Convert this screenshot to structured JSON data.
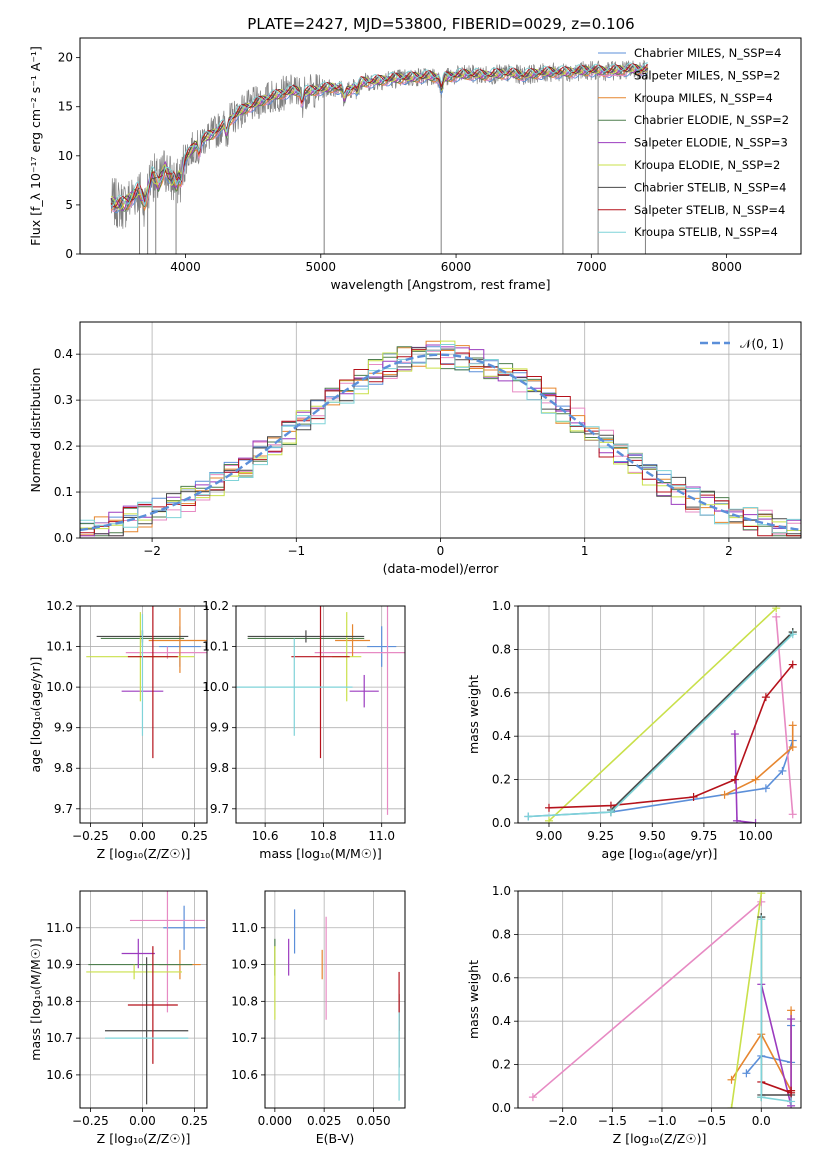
{
  "figure": {
    "title": "PLATE=2427, MJD=53800, FIBERID=0029, z=0.106"
  },
  "colors": {
    "Chabrier MILES": "#5b8fd9",
    "Salpeter MILES": "#e78ac3",
    "Kroupa MILES": "#e6862f",
    "Chabrier ELODIE": "#4f7f4f",
    "Salpeter ELODIE": "#9b3bbf",
    "Kroupa ELODIE": "#c9e04a",
    "Chabrier STELIB": "#4a4a4a",
    "Salpeter STELIB": "#b5121b",
    "Kroupa STELIB": "#7fd3d8",
    "data": "#808080",
    "normal": "#5b8fd9"
  },
  "chart_data": [
    {
      "id": "spectrum",
      "type": "line",
      "xlabel": "wavelength [Angstrom, rest frame]",
      "ylabel": "Flux [f_λ 10⁻¹⁷ erg cm⁻² s⁻¹ A⁻¹]",
      "xlim": [
        3220,
        8550
      ],
      "ylim": [
        0,
        22
      ],
      "xticks": [
        4000,
        5000,
        6000,
        7000,
        8000
      ],
      "yticks": [
        0,
        5,
        10,
        15,
        20
      ],
      "grid": false,
      "legend": {
        "placement": "top-right",
        "entries": [
          "Chabrier MILES, N_SSP=4",
          "Salpeter MILES, N_SSP=2",
          "Kroupa MILES, N_SSP=4",
          "Chabrier ELODIE, N_SSP=2",
          "Salpeter ELODIE, N_SSP=3",
          "Kroupa ELODIE, N_SSP=2",
          "Chabrier STELIB, N_SSP=4",
          "Salpeter STELIB, N_SSP=4",
          "Kroupa STELIB, N_SSP=4"
        ]
      },
      "continuum": [
        [
          3450,
          5.2
        ],
        [
          3550,
          5.0
        ],
        [
          3650,
          6.5
        ],
        [
          3700,
          5.2
        ],
        [
          3750,
          8.2
        ],
        [
          3800,
          7.0
        ],
        [
          3850,
          8.8
        ],
        [
          3900,
          7.4
        ],
        [
          3950,
          8.0
        ],
        [
          4000,
          9.8
        ],
        [
          4100,
          11.5
        ],
        [
          4200,
          12.2
        ],
        [
          4300,
          13.3
        ],
        [
          4400,
          14.5
        ],
        [
          4500,
          15.2
        ],
        [
          4600,
          15.8
        ],
        [
          4700,
          16.3
        ],
        [
          4800,
          16.6
        ],
        [
          4900,
          16.5
        ],
        [
          5000,
          16.8
        ],
        [
          5100,
          17.0
        ],
        [
          5200,
          16.6
        ],
        [
          5300,
          17.5
        ],
        [
          5400,
          17.6
        ],
        [
          5500,
          17.8
        ],
        [
          5600,
          17.9
        ],
        [
          5700,
          18.0
        ],
        [
          5800,
          18.1
        ],
        [
          5900,
          17.9
        ],
        [
          6000,
          18.2
        ],
        [
          6100,
          18.3
        ],
        [
          6200,
          18.2
        ],
        [
          6300,
          18.3
        ],
        [
          6400,
          18.4
        ],
        [
          6500,
          18.2
        ],
        [
          6600,
          18.4
        ],
        [
          6700,
          18.5
        ],
        [
          6800,
          18.5
        ],
        [
          6900,
          18.6
        ],
        [
          7000,
          18.7
        ],
        [
          7100,
          18.6
        ],
        [
          7200,
          18.7
        ],
        [
          7300,
          18.8
        ],
        [
          7400,
          18.8
        ]
      ],
      "absorption_features": [
        [
          3934,
          7.0
        ],
        [
          3968,
          7.6
        ],
        [
          4101,
          10.3
        ],
        [
          4304,
          12.2
        ],
        [
          4861,
          15.5
        ],
        [
          5175,
          15.8
        ],
        [
          5270,
          16.6
        ],
        [
          5893,
          16.8
        ]
      ],
      "masked_spikes": [
        [
          3660,
          0
        ],
        [
          3720,
          0
        ],
        [
          3780,
          0
        ],
        [
          3930,
          0
        ],
        [
          5025,
          0
        ],
        [
          5890,
          0
        ],
        [
          6790,
          0
        ],
        [
          7050,
          0
        ],
        [
          7400,
          0
        ]
      ]
    },
    {
      "id": "residuals",
      "type": "line",
      "xlabel": "(data-model)/error",
      "ylabel": "Normed distribution",
      "xlim": [
        -2.5,
        2.5
      ],
      "ylim": [
        0,
        0.47
      ],
      "xticks": [
        -2,
        -1,
        0,
        1,
        2
      ],
      "yticks": [
        0.0,
        0.1,
        0.2,
        0.3,
        0.4
      ],
      "grid": true,
      "legend": {
        "placement": "top-right",
        "entries": [
          "𝒩(0, 1)"
        ]
      },
      "normal": {
        "mean": 0,
        "sigma": 1
      }
    },
    {
      "id": "age-vs-Z",
      "type": "scatter",
      "xlabel": "Z [log₁₀(Z/Z☉)]",
      "ylabel": "age  [log₁₀(age/yr)]",
      "xlim": [
        -0.3,
        0.31
      ],
      "ylim": [
        9.665,
        10.2
      ],
      "xticks": [
        -0.25,
        0.0,
        0.25
      ],
      "yticks": [
        9.7,
        9.8,
        9.9,
        10.0,
        10.1,
        10.2
      ],
      "grid": true,
      "points": [
        {
          "m": "Chabrier MILES",
          "x": 0.18,
          "y": 10.1,
          "xerr": 0.1,
          "yerr": 0.05
        },
        {
          "m": "Salpeter MILES",
          "x": 0.12,
          "y": 10.085,
          "xerr": 0.2,
          "yerr": 0.015
        },
        {
          "m": "Kroupa MILES",
          "x": 0.18,
          "y": 10.115,
          "xerr": 0.15,
          "yerr": 0.08
        },
        {
          "m": "Chabrier ELODIE",
          "x": 0.0,
          "y": 10.12,
          "xerr": 0.2,
          "yerr": 0.02
        },
        {
          "m": "Salpeter ELODIE",
          "x": 0.0,
          "y": 9.99,
          "xerr": 0.1,
          "yerr": 0.0
        },
        {
          "m": "Kroupa ELODIE",
          "x": -0.01,
          "y": 10.075,
          "xerr": 0.26,
          "yerr": 0.11
        },
        {
          "m": "Chabrier STELIB",
          "x": 0.0,
          "y": 10.125,
          "xerr": 0.22,
          "yerr": 0.015
        },
        {
          "m": "Salpeter STELIB",
          "x": 0.05,
          "y": 10.075,
          "xerr": 0.12,
          "yerr": 0.25
        },
        {
          "m": "Kroupa STELIB",
          "x": 0.0,
          "y": 10.03,
          "xerr": 0.0,
          "yerr": 0.15
        }
      ]
    },
    {
      "id": "age-vs-mass",
      "type": "scatter",
      "xlabel": "mass [log₁₀(M/M☉)]",
      "ylabel": "",
      "xlim": [
        10.5,
        11.08
      ],
      "ylim": [
        9.665,
        10.2
      ],
      "xticks": [
        10.6,
        10.8,
        11.0
      ],
      "yticks": [
        9.7,
        9.8,
        9.9,
        10.0,
        10.1,
        10.2
      ],
      "grid": true,
      "points": [
        {
          "m": "Chabrier MILES",
          "x": 11.0,
          "y": 10.1,
          "xerr": 0.05,
          "yerr": 0.05
        },
        {
          "m": "Salpeter MILES",
          "x": 11.02,
          "y": 10.085,
          "xerr": 0.25,
          "yerr": 0.4
        },
        {
          "m": "Kroupa MILES",
          "x": 10.9,
          "y": 10.115,
          "xerr": 0.06,
          "yerr": 0.04
        },
        {
          "m": "Chabrier ELODIE",
          "x": 10.74,
          "y": 10.12,
          "xerr": 0.2,
          "yerr": 0.0
        },
        {
          "m": "Salpeter ELODIE",
          "x": 10.94,
          "y": 9.99,
          "xerr": 0.05,
          "yerr": 0.04
        },
        {
          "m": "Kroupa ELODIE",
          "x": 10.88,
          "y": 10.075,
          "xerr": 0.05,
          "yerr": 0.11
        },
        {
          "m": "Chabrier STELIB",
          "x": 10.74,
          "y": 10.125,
          "xerr": 0.2,
          "yerr": 0.015
        },
        {
          "m": "Salpeter STELIB",
          "x": 10.79,
          "y": 10.075,
          "xerr": 0.1,
          "yerr": 0.25
        },
        {
          "m": "Kroupa STELIB",
          "x": 10.7,
          "y": 10.0,
          "xerr": 0.2,
          "yerr": 0.12
        }
      ]
    },
    {
      "id": "weights-vs-age",
      "type": "line",
      "xlabel": "age  [log₁₀(age/yr)]",
      "ylabel": "mass weight",
      "xlim": [
        8.85,
        10.22
      ],
      "ylim": [
        0,
        1.0
      ],
      "xticks": [
        9.0,
        9.25,
        9.5,
        9.75,
        10.0
      ],
      "yticks": [
        0.0,
        0.2,
        0.4,
        0.6,
        0.8,
        1.0
      ],
      "grid": true,
      "series": [
        {
          "m": "Chabrier MILES",
          "x": [
            8.9,
            9.3,
            10.05,
            10.13,
            10.18
          ],
          "y": [
            0.03,
            0.05,
            0.16,
            0.24,
            0.38
          ]
        },
        {
          "m": "Salpeter MILES",
          "x": [
            10.1,
            10.18
          ],
          "y": [
            0.95,
            0.04
          ]
        },
        {
          "m": "Kroupa MILES",
          "x": [
            9.85,
            10.0,
            10.18,
            10.18
          ],
          "y": [
            0.13,
            0.2,
            0.35,
            0.45
          ]
        },
        {
          "m": "Chabrier ELODIE",
          "x": [
            9.3,
            10.18
          ],
          "y": [
            0.05,
            0.88
          ]
        },
        {
          "m": "Salpeter ELODIE",
          "x": [
            9.9,
            9.91,
            10.0
          ],
          "y": [
            0.41,
            0.01,
            0.0
          ]
        },
        {
          "m": "Kroupa ELODIE",
          "x": [
            9.0,
            10.1
          ],
          "y": [
            0.01,
            0.99
          ]
        },
        {
          "m": "Chabrier STELIB",
          "x": [
            9.3,
            10.18
          ],
          "y": [
            0.06,
            0.88
          ]
        },
        {
          "m": "Salpeter STELIB",
          "x": [
            9.0,
            9.3,
            9.7,
            9.9,
            10.05,
            10.18
          ],
          "y": [
            0.07,
            0.08,
            0.12,
            0.2,
            0.58,
            0.73
          ]
        },
        {
          "m": "Kroupa STELIB",
          "x": [
            8.9,
            9.3,
            10.18
          ],
          "y": [
            0.03,
            0.05,
            0.87
          ]
        }
      ]
    },
    {
      "id": "mass-vs-Z",
      "type": "scatter",
      "xlabel": "Z [log₁₀(Z/Z☉)]",
      "ylabel": "mass [log₁₀(M/M☉)]",
      "xlim": [
        -0.3,
        0.31
      ],
      "ylim": [
        10.51,
        11.1
      ],
      "xticks": [
        -0.25,
        0.0,
        0.25
      ],
      "yticks": [
        10.6,
        10.7,
        10.8,
        10.9,
        11.0
      ],
      "grid": true,
      "points": [
        {
          "m": "Chabrier MILES",
          "x": 0.2,
          "y": 11.0,
          "xerr": 0.1,
          "yerr": 0.06
        },
        {
          "m": "Salpeter MILES",
          "x": 0.12,
          "y": 11.02,
          "xerr": 0.18,
          "yerr": 0.25
        },
        {
          "m": "Kroupa MILES",
          "x": 0.18,
          "y": 10.9,
          "xerr": 0.1,
          "yerr": 0.04
        },
        {
          "m": "Chabrier ELODIE",
          "x": -0.01,
          "y": 10.9,
          "xerr": 0.25,
          "yerr": 0.0
        },
        {
          "m": "Salpeter ELODIE",
          "x": -0.02,
          "y": 10.93,
          "xerr": 0.08,
          "yerr": 0.04
        },
        {
          "m": "Kroupa ELODIE",
          "x": -0.04,
          "y": 10.88,
          "xerr": 0.23,
          "yerr": 0.02
        },
        {
          "m": "Chabrier STELIB",
          "x": 0.02,
          "y": 10.72,
          "xerr": 0.2,
          "yerr": 0.2
        },
        {
          "m": "Salpeter STELIB",
          "x": 0.05,
          "y": 10.79,
          "xerr": 0.12,
          "yerr": 0.16
        },
        {
          "m": "Kroupa STELIB",
          "x": 0.02,
          "y": 10.7,
          "xerr": 0.2,
          "yerr": 0.0
        }
      ]
    },
    {
      "id": "mass-vs-EBV",
      "type": "scatter",
      "xlabel": "E(B-V)",
      "ylabel": "",
      "xlim": [
        -0.005,
        0.066
      ],
      "ylim": [
        10.51,
        11.1
      ],
      "xticks": [
        0.0,
        0.025,
        0.05
      ],
      "yticks": [
        10.6,
        10.7,
        10.8,
        10.9,
        11.0
      ],
      "grid": true,
      "points": [
        {
          "m": "Chabrier MILES",
          "x": 0.01,
          "y": 10.99,
          "xerr": 0,
          "yerr": 0.06
        },
        {
          "m": "Salpeter MILES",
          "x": 0.026,
          "y": 10.89,
          "xerr": 0,
          "yerr": 0.14
        },
        {
          "m": "Kroupa MILES",
          "x": 0.024,
          "y": 10.9,
          "xerr": 0,
          "yerr": 0.04
        },
        {
          "m": "Chabrier ELODIE",
          "x": 0.0,
          "y": 10.92,
          "xerr": 0,
          "yerr": 0.05
        },
        {
          "m": "Salpeter ELODIE",
          "x": 0.007,
          "y": 10.92,
          "xerr": 0,
          "yerr": 0.05
        },
        {
          "m": "Kroupa ELODIE",
          "x": 0.0,
          "y": 10.85,
          "xerr": 0,
          "yerr": 0.1
        },
        {
          "m": "Chabrier STELIB",
          "x": 0.063,
          "y": 10.72,
          "xerr": 0,
          "yerr": 0.1
        },
        {
          "m": "Salpeter STELIB",
          "x": 0.063,
          "y": 10.8,
          "xerr": 0,
          "yerr": 0.08
        },
        {
          "m": "Kroupa STELIB",
          "x": 0.063,
          "y": 10.65,
          "xerr": 0,
          "yerr": 0.12
        }
      ]
    },
    {
      "id": "weights-vs-Z",
      "type": "line",
      "xlabel": "Z [log₁₀(Z/Z☉)]",
      "ylabel": "mass weight",
      "xlim": [
        -2.45,
        0.4
      ],
      "ylim": [
        0,
        1.0
      ],
      "xticks": [
        -2.0,
        -1.5,
        -1.0,
        -0.5,
        0.0
      ],
      "yticks": [
        0.0,
        0.2,
        0.4,
        0.6,
        0.8,
        1.0
      ],
      "grid": true,
      "series": [
        {
          "m": "Chabrier MILES",
          "x": [
            -0.15,
            0.0,
            0.3,
            0.3
          ],
          "y": [
            0.16,
            0.24,
            0.21,
            0.38
          ]
        },
        {
          "m": "Salpeter MILES",
          "x": [
            -2.3,
            0.0
          ],
          "y": [
            0.05,
            0.95
          ]
        },
        {
          "m": "Kroupa MILES",
          "x": [
            -0.3,
            0.0,
            0.3,
            0.3
          ],
          "y": [
            0.13,
            0.34,
            0.08,
            0.45
          ]
        },
        {
          "m": "Chabrier ELODIE",
          "x": [
            0.0,
            0.0
          ],
          "y": [
            0.05,
            0.88
          ]
        },
        {
          "m": "Salpeter ELODIE",
          "x": [
            0.0,
            0.3,
            0.3
          ],
          "y": [
            0.57,
            0.01,
            0.41
          ]
        },
        {
          "m": "Kroupa ELODIE",
          "x": [
            -0.3,
            0.0
          ],
          "y": [
            0.0,
            0.99
          ]
        },
        {
          "m": "Chabrier STELIB",
          "x": [
            0.0,
            0.0,
            0.3
          ],
          "y": [
            0.88,
            0.06,
            0.06
          ]
        },
        {
          "m": "Salpeter STELIB",
          "x": [
            0.0,
            0.3,
            0.3
          ],
          "y": [
            0.12,
            0.07,
            0.08
          ]
        },
        {
          "m": "Kroupa STELIB",
          "x": [
            0.0,
            0.0,
            0.3
          ],
          "y": [
            0.87,
            0.05,
            0.03
          ]
        }
      ]
    }
  ]
}
